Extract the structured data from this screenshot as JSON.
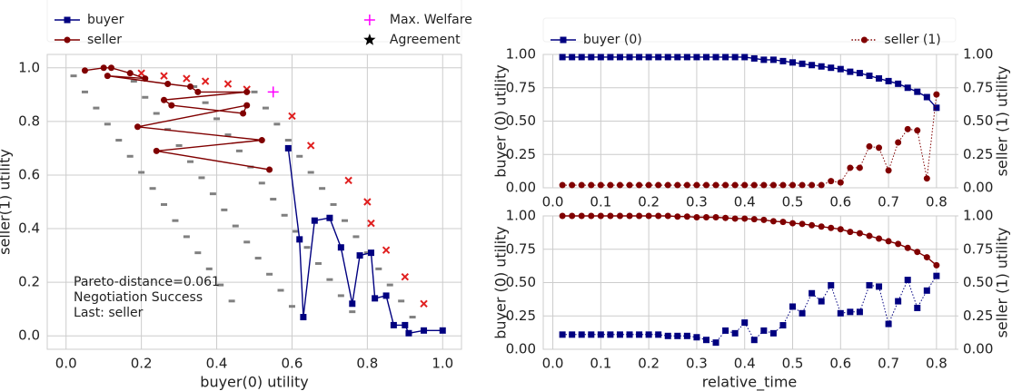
{
  "chart_data": [
    {
      "type": "line",
      "xlabel": "buyer(0) utility",
      "ylabel": "seller(1) utility",
      "xlim": [
        -0.05,
        1.05
      ],
      "ylim": [
        -0.05,
        1.05
      ],
      "xticks": [
        {
          "value": 0,
          "label": "0.0"
        },
        0.2,
        0.4,
        0.6,
        0.8,
        {
          "value": 1,
          "label": "1.0"
        }
      ],
      "yticks": [
        {
          "value": 0,
          "label": "0.0"
        },
        0.2,
        0.4,
        0.6,
        0.8,
        {
          "value": 1,
          "label": "1.0"
        }
      ],
      "grid": true,
      "legend": "above",
      "annotation": [
        "Pareto-distance=0.061",
        "Negotiation Success",
        "Last: seller"
      ],
      "outcomes": {
        "color": "#808080",
        "x": [
          0.02,
          0.18,
          0.34,
          0.5,
          0.05,
          0.21,
          0.37,
          0.53,
          0.08,
          0.24,
          0.4,
          0.56,
          0.11,
          0.27,
          0.43,
          0.59,
          0.14,
          0.3,
          0.46,
          0.62,
          0.17,
          0.33,
          0.49,
          0.65,
          0.2,
          0.36,
          0.52,
          0.68,
          0.23,
          0.39,
          0.55,
          0.71,
          0.26,
          0.42,
          0.58,
          0.74,
          0.29,
          0.45,
          0.61,
          0.77,
          0.32,
          0.48,
          0.64,
          0.8,
          0.35,
          0.51,
          0.67,
          0.83,
          0.38,
          0.54,
          0.7,
          0.86,
          0.41,
          0.57,
          0.73,
          0.89,
          0.44,
          0.6,
          0.76,
          0.92
        ],
        "y": [
          0.97,
          0.95,
          0.93,
          0.91,
          0.91,
          0.89,
          0.87,
          0.85,
          0.85,
          0.83,
          0.81,
          0.79,
          0.79,
          0.77,
          0.75,
          0.73,
          0.73,
          0.71,
          0.69,
          0.67,
          0.67,
          0.65,
          0.63,
          0.61,
          0.61,
          0.59,
          0.57,
          0.55,
          0.55,
          0.53,
          0.51,
          0.49,
          0.49,
          0.47,
          0.45,
          0.43,
          0.43,
          0.41,
          0.39,
          0.37,
          0.37,
          0.35,
          0.33,
          0.31,
          0.31,
          0.29,
          0.27,
          0.25,
          0.25,
          0.23,
          0.21,
          0.19,
          0.19,
          0.17,
          0.15,
          0.13,
          0.13,
          0.11,
          0.09,
          0.07
        ]
      },
      "frontier": {
        "color": "#e02020",
        "x": [
          0.2,
          0.26,
          0.32,
          0.37,
          0.43,
          0.48,
          0.6,
          0.65,
          0.75,
          0.8,
          0.81,
          0.85,
          0.9,
          0.95
        ],
        "y": [
          0.98,
          0.97,
          0.96,
          0.95,
          0.94,
          0.92,
          0.82,
          0.71,
          0.58,
          0.5,
          0.42,
          0.32,
          0.22,
          0.12
        ]
      },
      "series": [
        {
          "name": "buyer",
          "color": "#000080",
          "marker": "square",
          "line": "solid",
          "x": [
            0.59,
            0.62,
            0.63,
            0.66,
            0.7,
            0.73,
            0.76,
            0.78,
            0.81,
            0.82,
            0.85,
            0.87,
            0.9,
            0.91,
            0.95,
            1.0
          ],
          "values": [
            0.7,
            0.36,
            0.07,
            0.43,
            0.44,
            0.33,
            0.12,
            0.3,
            0.31,
            0.14,
            0.15,
            0.04,
            0.04,
            0.01,
            0.02,
            0.02
          ]
        },
        {
          "name": "seller",
          "color": "#800000",
          "marker": "circle",
          "line": "solid",
          "x": [
            0.05,
            0.1,
            0.12,
            0.17,
            0.21,
            0.11,
            0.27,
            0.33,
            0.35,
            0.48,
            0.26,
            0.28,
            0.47,
            0.48,
            0.19,
            0.52,
            0.24,
            0.54
          ],
          "values": [
            0.99,
            1.0,
            1.0,
            0.98,
            0.96,
            0.97,
            0.94,
            0.93,
            0.91,
            0.91,
            0.88,
            0.86,
            0.83,
            0.86,
            0.78,
            0.73,
            0.69,
            0.62
          ]
        },
        {
          "name": "Max. Welfare",
          "color": "#ff00ff",
          "marker": "plus",
          "line": "none",
          "x": [
            0.55
          ],
          "values": [
            0.91
          ]
        },
        {
          "name": "Agreement",
          "color": "#000000",
          "marker": "star",
          "line": "none",
          "x": [],
          "values": []
        }
      ]
    },
    {
      "type": "line",
      "ylabel": "buyer (0) utility",
      "y2label": "seller (1) utility",
      "xlim": [
        -0.02,
        0.84
      ],
      "ylim": [
        0,
        1
      ],
      "y2lim": [
        0,
        1
      ],
      "xticks": [
        {
          "value": 0,
          "label": "0.0"
        },
        0.1,
        0.2,
        0.3,
        0.4,
        0.5,
        0.6,
        0.7,
        0.8
      ],
      "yticks": [
        {
          "value": 0,
          "label": "0.00"
        },
        0.25,
        {
          "value": 0.5,
          "label": "0.50"
        },
        0.75,
        {
          "value": 1,
          "label": "1.00"
        }
      ],
      "y2ticks": [
        {
          "value": 0,
          "label": "0.00"
        },
        0.25,
        {
          "value": 0.5,
          "label": "0.50"
        },
        0.75,
        {
          "value": 1,
          "label": "1.00"
        }
      ],
      "grid": true,
      "legend": "above",
      "x": [
        0.02,
        0.04,
        0.06,
        0.08,
        0.1,
        0.12,
        0.14,
        0.16,
        0.18,
        0.2,
        0.22,
        0.24,
        0.26,
        0.28,
        0.3,
        0.32,
        0.34,
        0.36,
        0.38,
        0.4,
        0.42,
        0.44,
        0.46,
        0.48,
        0.5,
        0.52,
        0.54,
        0.56,
        0.58,
        0.6,
        0.62,
        0.64,
        0.66,
        0.68,
        0.7,
        0.72,
        0.74,
        0.76,
        0.78,
        0.8
      ],
      "series": [
        {
          "name": "buyer (0)",
          "color": "#000080",
          "marker": "square",
          "line": "solid",
          "values": [
            0.98,
            0.98,
            0.98,
            0.98,
            0.98,
            0.98,
            0.98,
            0.98,
            0.98,
            0.98,
            0.98,
            0.98,
            0.98,
            0.98,
            0.98,
            0.98,
            0.98,
            0.98,
            0.98,
            0.98,
            0.97,
            0.96,
            0.96,
            0.95,
            0.94,
            0.93,
            0.92,
            0.91,
            0.9,
            0.89,
            0.87,
            0.86,
            0.84,
            0.82,
            0.8,
            0.78,
            0.75,
            0.72,
            0.68,
            0.6
          ]
        },
        {
          "name": "seller (1)",
          "color": "#800000",
          "marker": "circle",
          "line": "dotted",
          "axis": "y2",
          "values": [
            0.02,
            0.02,
            0.02,
            0.02,
            0.02,
            0.02,
            0.02,
            0.02,
            0.02,
            0.02,
            0.02,
            0.02,
            0.02,
            0.02,
            0.02,
            0.02,
            0.02,
            0.02,
            0.02,
            0.02,
            0.02,
            0.02,
            0.02,
            0.02,
            0.02,
            0.02,
            0.02,
            0.02,
            0.05,
            0.04,
            0.15,
            0.15,
            0.31,
            0.3,
            0.13,
            0.34,
            0.44,
            0.43,
            0.07,
            0.7
          ]
        }
      ]
    },
    {
      "type": "line",
      "xlabel": "relative_time",
      "ylabel": "buyer (0) utility",
      "y2label": "seller (1) utility",
      "xlim": [
        -0.02,
        0.84
      ],
      "ylim": [
        0,
        1
      ],
      "y2lim": [
        0,
        1
      ],
      "xticks": [
        {
          "value": 0,
          "label": "0.0"
        },
        0.1,
        0.2,
        0.3,
        0.4,
        0.5,
        0.6,
        0.7,
        0.8
      ],
      "yticks": [
        {
          "value": 0,
          "label": "0.00"
        },
        0.25,
        {
          "value": 0.5,
          "label": "0.50"
        },
        0.75,
        {
          "value": 1,
          "label": "1.00"
        }
      ],
      "y2ticks": [
        {
          "value": 0,
          "label": "0.00"
        },
        0.25,
        {
          "value": 0.5,
          "label": "0.50"
        },
        0.75,
        {
          "value": 1,
          "label": "1.00"
        }
      ],
      "grid": true,
      "x": [
        0.02,
        0.04,
        0.06,
        0.08,
        0.1,
        0.12,
        0.14,
        0.16,
        0.18,
        0.2,
        0.22,
        0.24,
        0.26,
        0.28,
        0.3,
        0.32,
        0.34,
        0.36,
        0.38,
        0.4,
        0.42,
        0.44,
        0.46,
        0.48,
        0.5,
        0.52,
        0.54,
        0.56,
        0.58,
        0.6,
        0.62,
        0.64,
        0.66,
        0.68,
        0.7,
        0.72,
        0.74,
        0.76,
        0.78,
        0.8
      ],
      "series": [
        {
          "color": "#800000",
          "marker": "circle",
          "line": "solid",
          "axis": "y2",
          "values": [
            1.0,
            1.0,
            1.0,
            1.0,
            1.0,
            1.0,
            1.0,
            1.0,
            1.0,
            1.0,
            1.0,
            1.0,
            0.995,
            0.995,
            0.99,
            0.99,
            0.99,
            0.985,
            0.98,
            0.98,
            0.975,
            0.97,
            0.96,
            0.955,
            0.945,
            0.94,
            0.93,
            0.92,
            0.91,
            0.9,
            0.88,
            0.87,
            0.85,
            0.83,
            0.81,
            0.79,
            0.76,
            0.73,
            0.69,
            0.63
          ]
        },
        {
          "color": "#000080",
          "marker": "square",
          "line": "dotted",
          "values": [
            0.11,
            0.11,
            0.11,
            0.11,
            0.11,
            0.11,
            0.11,
            0.11,
            0.11,
            0.11,
            0.11,
            0.1,
            0.1,
            0.1,
            0.09,
            0.07,
            0.05,
            0.14,
            0.12,
            0.2,
            0.07,
            0.14,
            0.12,
            0.18,
            0.32,
            0.27,
            0.42,
            0.36,
            0.48,
            0.27,
            0.28,
            0.28,
            0.48,
            0.47,
            0.19,
            0.36,
            0.52,
            0.31,
            0.44,
            0.55
          ]
        }
      ]
    }
  ]
}
